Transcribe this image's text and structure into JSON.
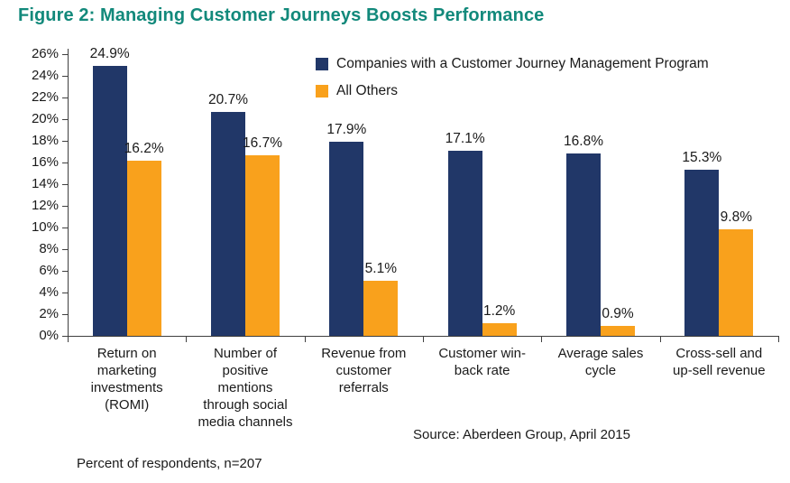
{
  "title": "Figure 2: Managing Customer Journeys Boosts Performance",
  "footnote": "Percent of respondents, n=207",
  "source": "Source: Aberdeen Group, April 2015",
  "colors": {
    "title": "#12897B",
    "series1": "#213768",
    "series2": "#F9A11C",
    "axis": "#3F3F3F",
    "text": "#1A1A1A"
  },
  "chart_data": {
    "type": "bar",
    "categories": [
      "Return on marketing investments (ROMI)",
      "Number of positive mentions through social media channels",
      "Revenue from customer referrals",
      "Customer win-back rate",
      "Average sales cycle",
      "Cross-sell and up-sell revenue"
    ],
    "series": [
      {
        "name": "Companies with a Customer Journey Management Program",
        "color_key": "series1",
        "values": [
          24.9,
          20.7,
          17.9,
          17.1,
          16.8,
          15.3
        ]
      },
      {
        "name": "All Others",
        "color_key": "series2",
        "values": [
          16.2,
          16.7,
          5.1,
          1.2,
          0.9,
          9.8
        ]
      }
    ],
    "value_label_format": "one-decimal-percent",
    "ylim": [
      0,
      26
    ],
    "ytick_step": 2,
    "yticks": [
      "0%",
      "2%",
      "4%",
      "6%",
      "8%",
      "10%",
      "12%",
      "14%",
      "16%",
      "18%",
      "20%",
      "22%",
      "24%",
      "26%"
    ],
    "legend_position": "top-center",
    "grid": false
  }
}
